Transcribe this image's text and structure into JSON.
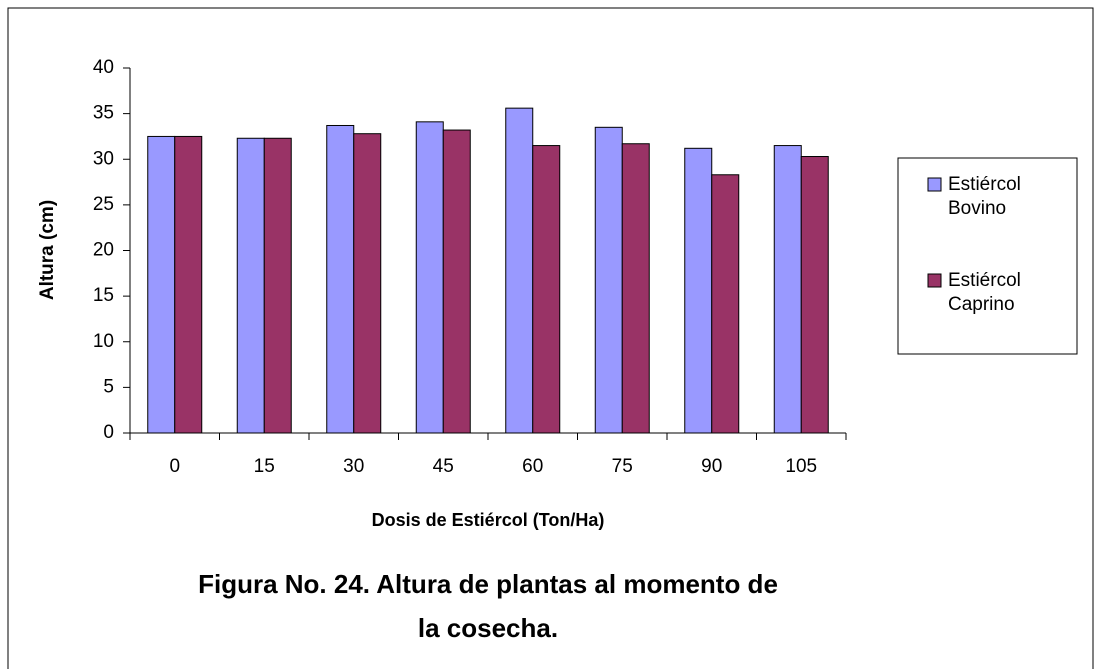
{
  "chart_data": {
    "type": "bar",
    "title": "Figura No. 24. Altura de plantas al momento de la cosecha.",
    "x_label": "Dosis de Estiércol (Ton/Ha)",
    "y_label": "Altura (cm)",
    "categories": [
      "0",
      "15",
      "30",
      "45",
      "60",
      "75",
      "90",
      "105"
    ],
    "series": [
      {
        "name": "Estiércol Bovino",
        "color": "#9999ff",
        "values": [
          32.5,
          32.3,
          33.7,
          34.1,
          35.6,
          33.5,
          31.2,
          31.5
        ]
      },
      {
        "name": "Estiércol Caprino",
        "color": "#993366",
        "values": [
          32.5,
          32.3,
          32.8,
          33.2,
          31.5,
          31.7,
          28.3,
          30.3
        ]
      }
    ],
    "ylim": [
      0,
      40
    ],
    "yticks": [
      0,
      5,
      10,
      15,
      20,
      25,
      30,
      35,
      40
    ],
    "grid": false,
    "legend": "right"
  }
}
